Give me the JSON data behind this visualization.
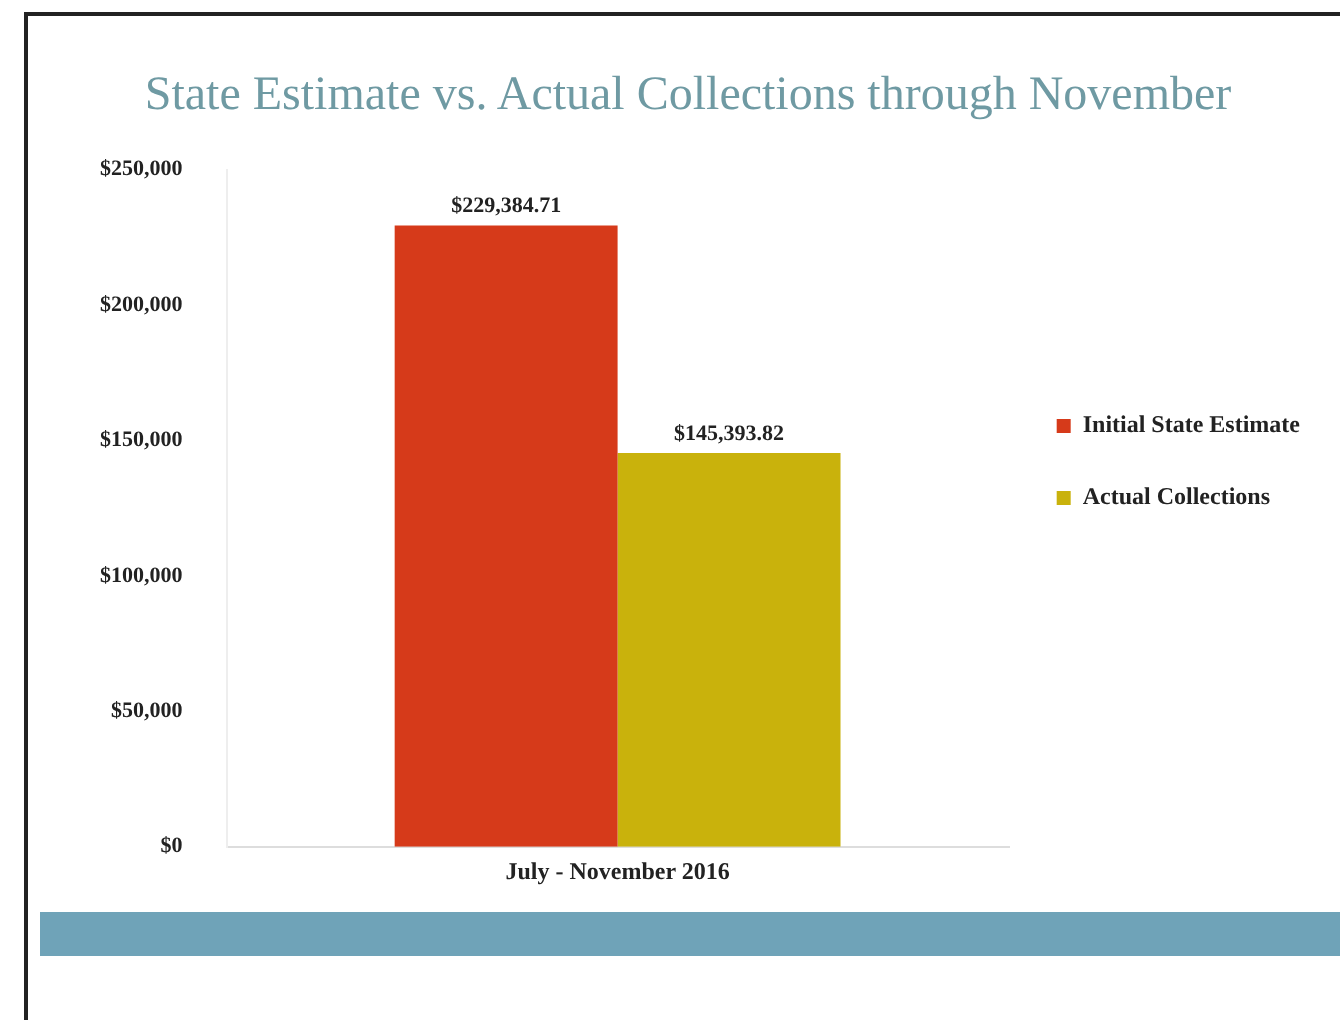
{
  "chart_data": {
    "type": "bar",
    "title": "State Estimate vs. Actual Collections through November",
    "categories": [
      "July - November 2016"
    ],
    "series": [
      {
        "name": "Initial State Estimate",
        "color": "#d63a1a",
        "values": [
          229384.71
        ],
        "value_labels": [
          "$229,384.71"
        ]
      },
      {
        "name": "Actual Collections",
        "color": "#c9b20c",
        "values": [
          145393.82
        ],
        "value_labels": [
          "$145,393.82"
        ]
      }
    ],
    "ylim": [
      0,
      250000
    ],
    "yticks": [
      {
        "value": 0,
        "label": "$0"
      },
      {
        "value": 50000,
        "label": "$50,000"
      },
      {
        "value": 100000,
        "label": "$100,000"
      },
      {
        "value": 150000,
        "label": "$150,000"
      },
      {
        "value": 200000,
        "label": "$200,000"
      },
      {
        "value": 250000,
        "label": "$250,000"
      }
    ],
    "grid": false,
    "legend": "right"
  }
}
